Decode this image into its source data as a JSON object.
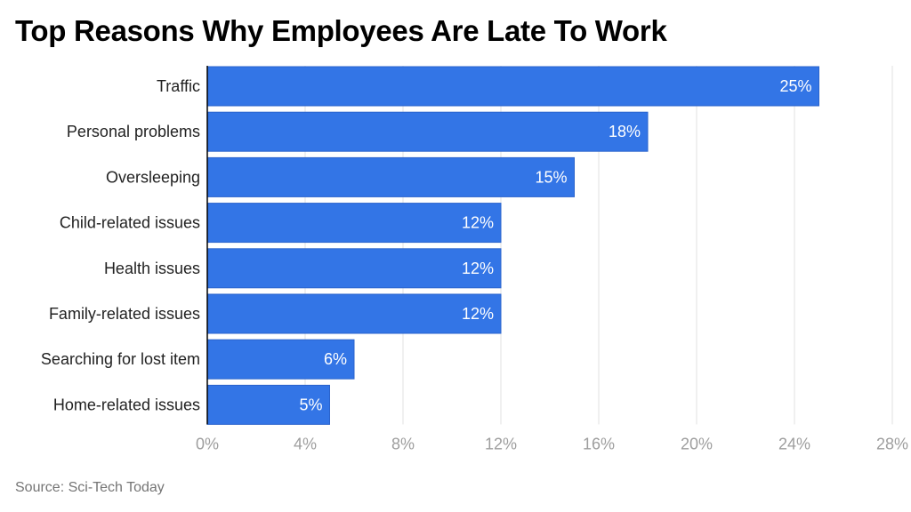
{
  "chart_data": {
    "type": "bar",
    "orientation": "horizontal",
    "title": "Top Reasons Why Employees Are Late To Work",
    "source": "Source: Sci-Tech Today",
    "categories": [
      "Traffic",
      "Personal problems",
      "Oversleeping",
      "Child-related issues",
      "Health issues",
      "Family-related issues",
      "Searching for lost item",
      "Home-related issues"
    ],
    "values": [
      25,
      18,
      15,
      12,
      12,
      12,
      6,
      5
    ],
    "data_labels": [
      "25%",
      "18%",
      "15%",
      "12%",
      "12%",
      "12%",
      "6%",
      "5%"
    ],
    "xlim": [
      0,
      28
    ],
    "x_ticks": [
      0,
      4,
      8,
      12,
      16,
      20,
      24,
      28
    ],
    "x_tick_labels": [
      "0%",
      "4%",
      "8%",
      "12%",
      "16%",
      "20%",
      "24%",
      "28%"
    ],
    "grid": "vertical",
    "bar_color": "#3375e6",
    "bar_border_color": "#2a63cc"
  }
}
